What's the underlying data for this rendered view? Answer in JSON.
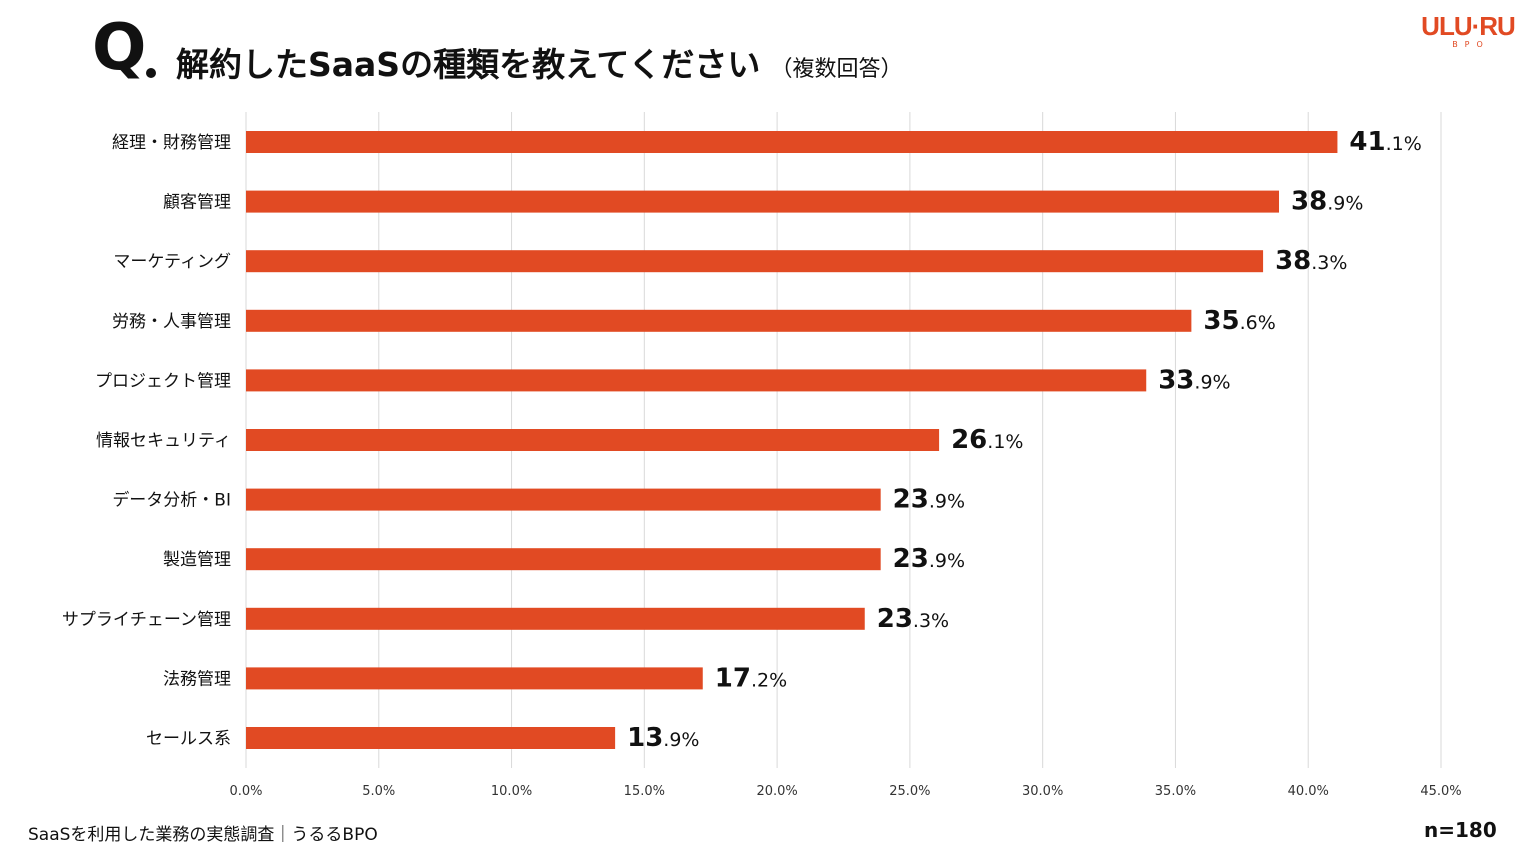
{
  "header": {
    "q_mark": "Q",
    "title": "解約したSaaSの種類を教えてください",
    "subtitle": "（複数回答）"
  },
  "logo": {
    "main": "ULU·RU",
    "sub": "BPO",
    "color": "#e14a23"
  },
  "chart_data": {
    "type": "bar",
    "orientation": "horizontal",
    "title": "解約したSaaSの種類を教えてください（複数回答）",
    "categories": [
      "経理・財務管理",
      "顧客管理",
      "マーケティング",
      "労務・人事管理",
      "プロジェクト管理",
      "情報セキュリティ",
      "データ分析・BI",
      "製造管理",
      "サプライチェーン管理",
      "法務管理",
      "セールス系"
    ],
    "values": [
      41.1,
      38.9,
      38.3,
      35.6,
      33.9,
      26.1,
      23.9,
      23.9,
      23.3,
      17.2,
      13.9
    ],
    "value_labels": [
      {
        "int": "41",
        "dec": ".1%"
      },
      {
        "int": "38",
        "dec": ".9%"
      },
      {
        "int": "38",
        "dec": ".3%"
      },
      {
        "int": "35",
        "dec": ".6%"
      },
      {
        "int": "33",
        "dec": ".9%"
      },
      {
        "int": "26",
        "dec": ".1%"
      },
      {
        "int": "23",
        "dec": ".9%"
      },
      {
        "int": "23",
        "dec": ".9%"
      },
      {
        "int": "23",
        "dec": ".3%"
      },
      {
        "int": "17",
        "dec": ".2%"
      },
      {
        "int": "13",
        "dec": ".9%"
      }
    ],
    "x_ticks": [
      0,
      5,
      10,
      15,
      20,
      25,
      30,
      35,
      40,
      45
    ],
    "x_tick_labels": [
      "0.0%",
      "5.0%",
      "10.0%",
      "15.0%",
      "20.0%",
      "25.0%",
      "30.0%",
      "35.0%",
      "40.0%",
      "45.0%"
    ],
    "xlim": [
      0,
      45
    ],
    "xlabel": "",
    "ylabel": "",
    "grid": "vertical",
    "bar_color": "#e14a23",
    "grid_color": "#d9d9d9"
  },
  "footer": {
    "source": "SaaSを利用した業務の実態調査｜うるるBPO",
    "n": "n=180"
  }
}
